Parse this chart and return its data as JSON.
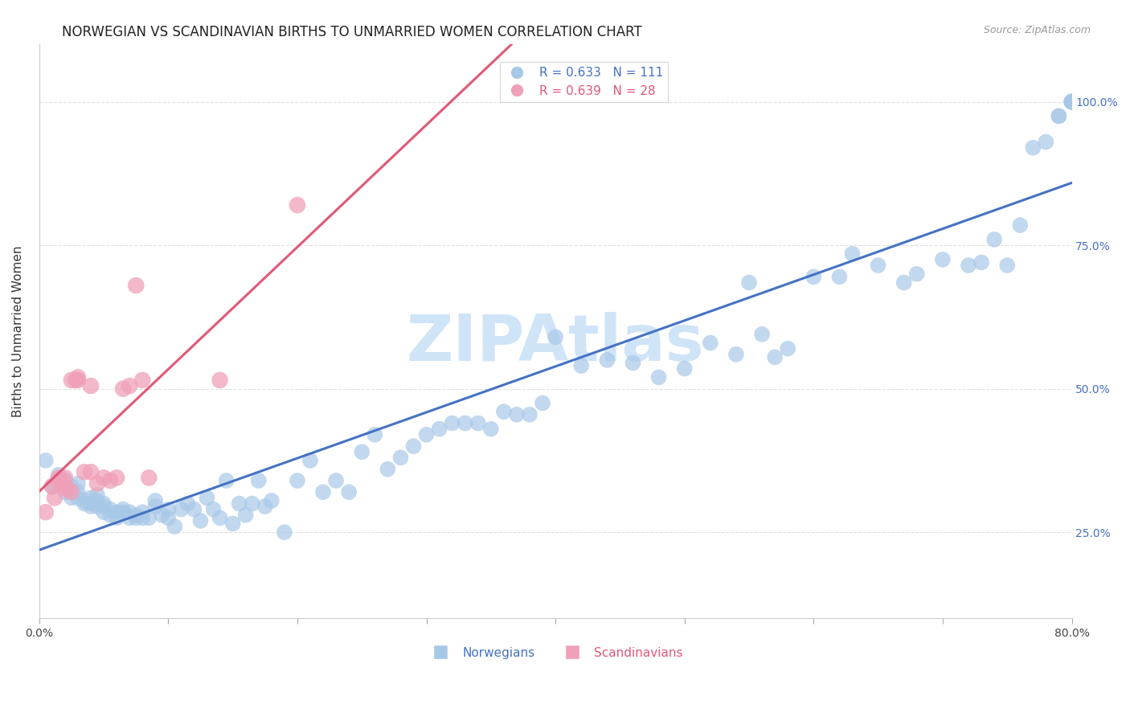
{
  "title": "NORWEGIAN VS SCANDINAVIAN BIRTHS TO UNMARRIED WOMEN CORRELATION CHART",
  "source": "Source: ZipAtlas.com",
  "ylabel": "Births to Unmarried Women",
  "ylabel_right_ticks": [
    0.25,
    0.5,
    0.75,
    1.0
  ],
  "ylabel_right_labels": [
    "25.0%",
    "50.0%",
    "75.0%",
    "100.0%"
  ],
  "xlim": [
    0.0,
    0.8
  ],
  "ylim": [
    0.1,
    1.1
  ],
  "norwegian_color": "#a8c8e8",
  "scandinavian_color": "#f0a0b8",
  "norwegian_line_color": "#4472c4",
  "scandinavian_line_color": "#e05878",
  "norwegian_R": 0.633,
  "norwegian_N": 111,
  "scandinavian_R": 0.639,
  "scandinavian_N": 28,
  "watermark": "ZIPAtlas",
  "watermark_color": "#d0e4f8",
  "norwegian_x": [
    0.005,
    0.01,
    0.015,
    0.02,
    0.02,
    0.025,
    0.025,
    0.03,
    0.03,
    0.03,
    0.035,
    0.035,
    0.04,
    0.04,
    0.04,
    0.045,
    0.045,
    0.045,
    0.05,
    0.05,
    0.05,
    0.055,
    0.055,
    0.06,
    0.06,
    0.065,
    0.065,
    0.07,
    0.07,
    0.075,
    0.075,
    0.08,
    0.08,
    0.085,
    0.09,
    0.09,
    0.095,
    0.1,
    0.1,
    0.105,
    0.11,
    0.115,
    0.12,
    0.125,
    0.13,
    0.135,
    0.14,
    0.145,
    0.15,
    0.155,
    0.16,
    0.165,
    0.17,
    0.175,
    0.18,
    0.19,
    0.2,
    0.21,
    0.22,
    0.23,
    0.24,
    0.25,
    0.26,
    0.27,
    0.28,
    0.29,
    0.3,
    0.31,
    0.32,
    0.33,
    0.34,
    0.35,
    0.36,
    0.37,
    0.38,
    0.39,
    0.4,
    0.42,
    0.44,
    0.46,
    0.48,
    0.5,
    0.52,
    0.54,
    0.55,
    0.56,
    0.57,
    0.58,
    0.6,
    0.62,
    0.63,
    0.65,
    0.67,
    0.68,
    0.7,
    0.72,
    0.73,
    0.74,
    0.75,
    0.76,
    0.77,
    0.78,
    0.79,
    0.79,
    0.8,
    0.8,
    0.8,
    0.8,
    0.8,
    0.8,
    0.8
  ],
  "norwegian_y": [
    0.375,
    0.33,
    0.35,
    0.34,
    0.32,
    0.33,
    0.31,
    0.335,
    0.32,
    0.31,
    0.3,
    0.305,
    0.31,
    0.3,
    0.295,
    0.305,
    0.315,
    0.295,
    0.3,
    0.295,
    0.285,
    0.28,
    0.29,
    0.285,
    0.275,
    0.29,
    0.285,
    0.275,
    0.285,
    0.28,
    0.275,
    0.285,
    0.275,
    0.275,
    0.305,
    0.295,
    0.28,
    0.29,
    0.275,
    0.26,
    0.29,
    0.3,
    0.29,
    0.27,
    0.31,
    0.29,
    0.275,
    0.34,
    0.265,
    0.3,
    0.28,
    0.3,
    0.34,
    0.295,
    0.305,
    0.25,
    0.34,
    0.375,
    0.32,
    0.34,
    0.32,
    0.39,
    0.42,
    0.36,
    0.38,
    0.4,
    0.42,
    0.43,
    0.44,
    0.44,
    0.44,
    0.43,
    0.46,
    0.455,
    0.455,
    0.475,
    0.59,
    0.54,
    0.55,
    0.545,
    0.52,
    0.535,
    0.58,
    0.56,
    0.685,
    0.595,
    0.555,
    0.57,
    0.695,
    0.695,
    0.735,
    0.715,
    0.685,
    0.7,
    0.725,
    0.715,
    0.72,
    0.76,
    0.715,
    0.785,
    0.92,
    0.93,
    0.975,
    0.975,
    1.0,
    1.0,
    1.0,
    1.0,
    1.0,
    1.0,
    1.0
  ],
  "scandinavian_x": [
    0.005,
    0.01,
    0.012,
    0.015,
    0.015,
    0.018,
    0.02,
    0.02,
    0.022,
    0.025,
    0.025,
    0.028,
    0.03,
    0.03,
    0.035,
    0.04,
    0.04,
    0.045,
    0.05,
    0.055,
    0.06,
    0.065,
    0.07,
    0.075,
    0.08,
    0.085,
    0.14,
    0.2
  ],
  "scandinavian_y": [
    0.285,
    0.33,
    0.31,
    0.34,
    0.345,
    0.33,
    0.335,
    0.345,
    0.325,
    0.32,
    0.515,
    0.515,
    0.52,
    0.515,
    0.355,
    0.355,
    0.505,
    0.335,
    0.345,
    0.34,
    0.345,
    0.5,
    0.505,
    0.68,
    0.515,
    0.345,
    0.515,
    0.82
  ],
  "grid_color": "#e0e0e0",
  "background_color": "#ffffff",
  "title_fontsize": 12,
  "axis_label_fontsize": 11,
  "tick_fontsize": 10,
  "legend_fontsize": 11,
  "source_fontsize": 9
}
